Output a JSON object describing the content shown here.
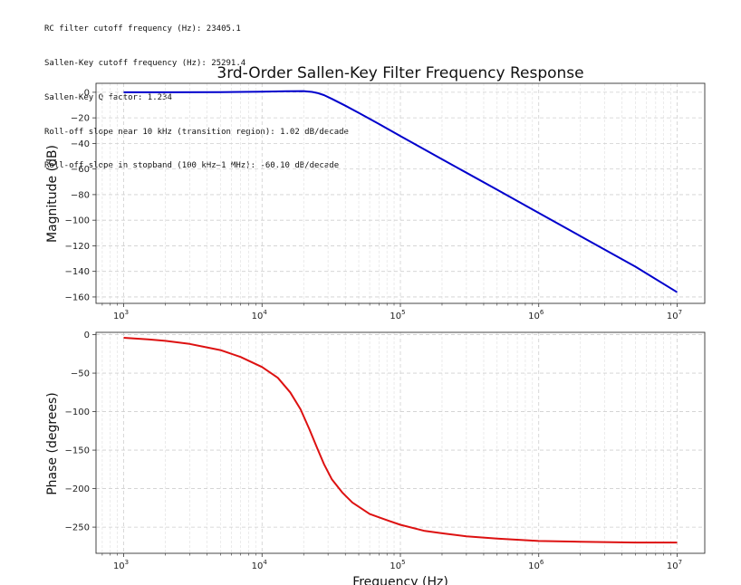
{
  "console_lines": [
    "RC filter cutoff frequency (Hz): 23405.1",
    "Sallen-Key cutoff frequency (Hz): 25291.4",
    "Sallen-Key Q factor: 1.234",
    "Roll-off slope near 10 kHz (transition region): 1.02 dB/decade",
    "Roll-off slope in stopband (100 kHz–1 MHz): -60.10 dB/decade"
  ],
  "chart_data": [
    {
      "type": "line",
      "title": "3rd-Order Sallen-Key Filter Frequency Response",
      "xlabel": "",
      "ylabel": "Magnitude (dB)",
      "xscale": "log",
      "xlim": [
        1000,
        10000000
      ],
      "ylim": [
        -165,
        7
      ],
      "x_ticks": [
        "10^3",
        "10^4",
        "10^5",
        "10^6",
        "10^7"
      ],
      "y_ticks": [
        0,
        -20,
        -40,
        -60,
        -80,
        -100,
        -120,
        -140,
        -160
      ],
      "grid": true,
      "series": [
        {
          "color": "#0000cc",
          "x": [
            1000,
            2000,
            5000,
            10000,
            15000,
            20000,
            23000,
            25000,
            28000,
            32000,
            40000,
            50000,
            70000,
            100000,
            200000,
            500000,
            1000000,
            2000000,
            5000000,
            10000000
          ],
          "y": [
            0,
            0,
            0.1,
            0.4,
            0.8,
            0.9,
            0.3,
            -0.5,
            -2.2,
            -5.2,
            -10.5,
            -16.1,
            -24.8,
            -34.2,
            -52.4,
            -76.2,
            -94.3,
            -112.4,
            -136.3,
            -156.3
          ]
        }
      ]
    },
    {
      "type": "line",
      "title": "",
      "xlabel": "Frequency (Hz)",
      "ylabel": "Phase (degrees)",
      "xscale": "log",
      "xlim": [
        1000,
        10000000
      ],
      "ylim": [
        -284,
        3
      ],
      "x_ticks": [
        "10^3",
        "10^4",
        "10^5",
        "10^6",
        "10^7"
      ],
      "y_ticks": [
        0,
        -50,
        -100,
        -150,
        -200,
        -250
      ],
      "grid": true,
      "series": [
        {
          "color": "#dd1111",
          "x": [
            1000,
            1500,
            2000,
            3000,
            5000,
            7000,
            10000,
            13000,
            16000,
            19000,
            22000,
            25000,
            28000,
            32000,
            38000,
            45000,
            60000,
            80000,
            100000,
            150000,
            200000,
            300000,
            500000,
            1000000,
            2000000,
            5000000,
            10000000
          ],
          "y": [
            -4,
            -6,
            -8,
            -12,
            -20,
            -29,
            -42,
            -56,
            -75,
            -97,
            -123,
            -147,
            -168,
            -188,
            -205,
            -218,
            -233,
            -241,
            -247,
            -255,
            -258,
            -262,
            -265,
            -268,
            -269,
            -270,
            -270
          ]
        }
      ]
    }
  ]
}
